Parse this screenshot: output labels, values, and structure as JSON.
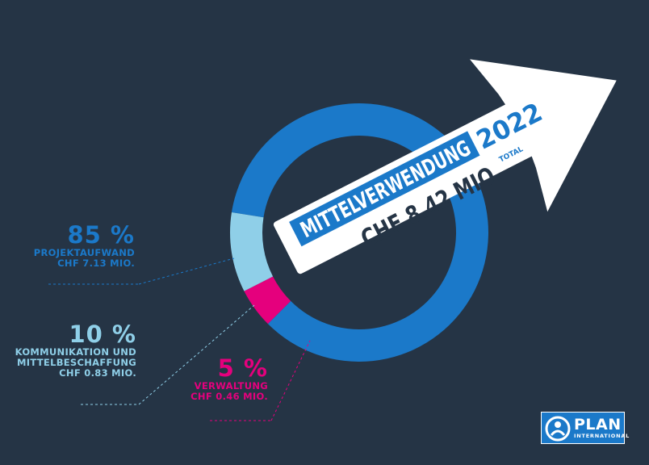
{
  "chart_data": {
    "type": "pie",
    "title": "MITTELVERWENDUNG 2022",
    "title_main": "MITTELVERWENDUNG",
    "title_year": "2022",
    "total": "CHF 8.42 MIO.",
    "total_suffix": "TOTAL",
    "slices": [
      {
        "key": "projekt",
        "percent": 85,
        "percent_label": "85 %",
        "label_lines": [
          "PROJEKTAUFWAND"
        ],
        "amount": "CHF 7.13 MIO.",
        "value": 7.13,
        "color": "#1b79c9"
      },
      {
        "key": "kommunikation",
        "percent": 10,
        "percent_label": "10 %",
        "label_lines": [
          "KOMMUNIKATION UND",
          "MITTELBESCHAFFUNG"
        ],
        "amount": "CHF 0.83 MIO.",
        "value": 0.83,
        "color": "#8fcfe8"
      },
      {
        "key": "verwaltung",
        "percent": 5,
        "percent_label": "5 %",
        "label_lines": [
          "VERWALTUNG"
        ],
        "amount": "CHF 0.46 MIO.",
        "value": 0.46,
        "color": "#e5007d"
      }
    ]
  },
  "logo": {
    "word": "PLAN",
    "sub": "INTERNATIONAL",
    "icon": "plan-logo-icon"
  },
  "colors": {
    "background": "#253445",
    "arrow": "#ffffff",
    "title_box": "#1b79c9",
    "text_dark": "#253445"
  }
}
